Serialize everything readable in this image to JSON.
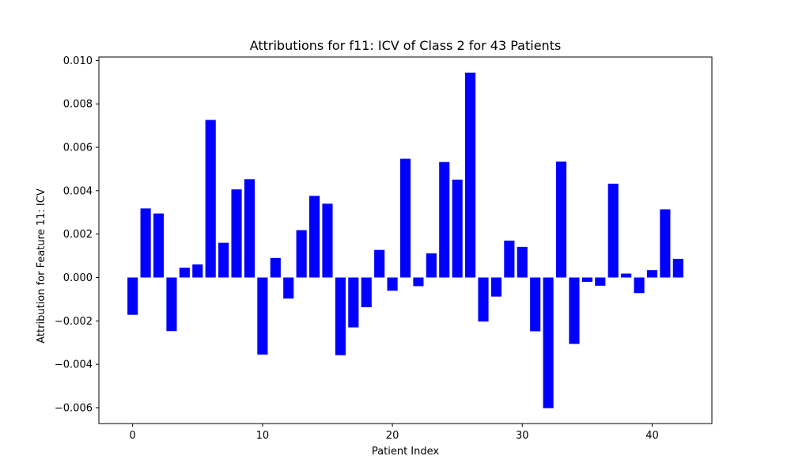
{
  "chart_data": {
    "type": "bar",
    "title": "Attributions for f11: ICV of Class 2 for 43 Patients",
    "xlabel": "Patient Index",
    "ylabel": "Attribution for Feature 11: ICV",
    "x": [
      0,
      1,
      2,
      3,
      4,
      5,
      6,
      7,
      8,
      9,
      10,
      11,
      12,
      13,
      14,
      15,
      16,
      17,
      18,
      19,
      20,
      21,
      22,
      23,
      24,
      25,
      26,
      27,
      28,
      29,
      30,
      31,
      32,
      33,
      34,
      35,
      36,
      37,
      38,
      39,
      40,
      41,
      42
    ],
    "values": [
      -0.00172,
      0.00318,
      0.00295,
      -0.00247,
      0.00045,
      0.0006,
      0.00726,
      0.0016,
      0.00406,
      0.00453,
      -0.00355,
      0.0009,
      -0.00097,
      0.00218,
      0.00376,
      0.0034,
      -0.00358,
      -0.0023,
      -0.00137,
      0.00127,
      -0.00061,
      0.00547,
      -0.0004,
      0.00111,
      0.00532,
      0.00451,
      0.00944,
      -0.00203,
      -0.00088,
      0.0017,
      0.00141,
      -0.00248,
      -0.00602,
      0.00534,
      -0.00306,
      -0.0002,
      -0.00038,
      0.00432,
      0.00018,
      -0.00072,
      0.00034,
      0.00314,
      0.00086
    ],
    "xlim": [
      -2.6,
      44.6
    ],
    "ylim": [
      -0.00673,
      0.01016
    ],
    "xticks": [
      0,
      10,
      20,
      30,
      40
    ],
    "xtick_labels": [
      "0",
      "10",
      "20",
      "30",
      "40"
    ],
    "yticks": [
      -0.006,
      -0.004,
      -0.002,
      0.0,
      0.002,
      0.004,
      0.006,
      0.008,
      0.01
    ],
    "ytick_labels": [
      "−0.006",
      "−0.004",
      "−0.002",
      "0.000",
      "0.002",
      "0.004",
      "0.006",
      "0.008",
      "0.010"
    ],
    "bar_color": "#0000ff",
    "grid": false
  }
}
